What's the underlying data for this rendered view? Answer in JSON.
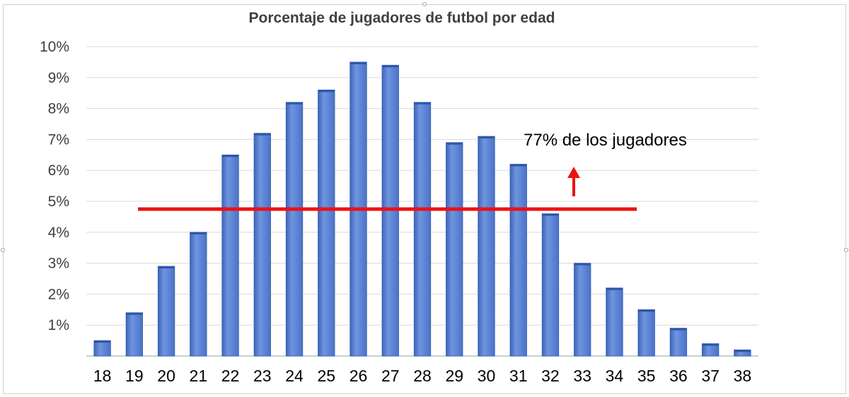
{
  "chart_data": {
    "type": "bar",
    "title": "Porcentaje de  jugadores de futbol por edad",
    "categories": [
      "18",
      "19",
      "20",
      "21",
      "22",
      "23",
      "24",
      "25",
      "26",
      "27",
      "28",
      "29",
      "30",
      "31",
      "32",
      "33",
      "34",
      "35",
      "36",
      "37",
      "38"
    ],
    "values": [
      0.5,
      1.4,
      2.9,
      4.0,
      6.5,
      7.2,
      8.2,
      8.6,
      9.5,
      9.4,
      8.2,
      6.9,
      7.1,
      6.2,
      4.6,
      3.0,
      2.2,
      1.5,
      0.9,
      0.4,
      0.2
    ],
    "ylim": [
      0,
      10
    ],
    "yticks": [
      "",
      "1%",
      "2%",
      "3%",
      "4%",
      "5%",
      "6%",
      "7%",
      "8%",
      "9%",
      "10%"
    ],
    "grid": true,
    "legend": "none",
    "bar_color": "#4a74cc",
    "bar_color_light": "#6b91de",
    "annotations": {
      "threshold_value": 4.75,
      "threshold_color": "#ee1111",
      "text": "77% de los jugadores",
      "arrow_color": "#ee1111"
    }
  }
}
